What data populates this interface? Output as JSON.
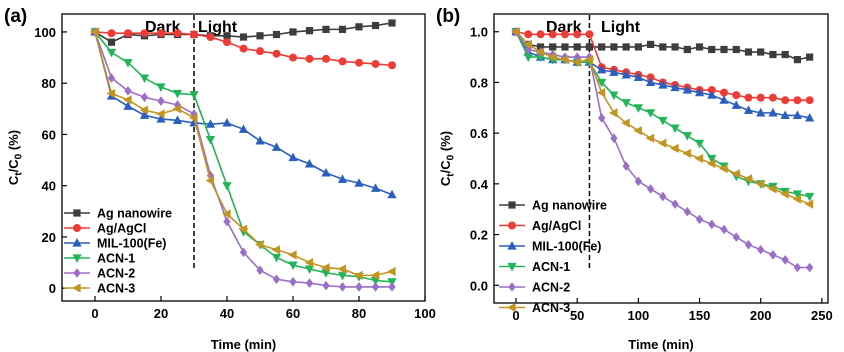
{
  "chart_data": [
    {
      "panel_label": "(a)",
      "type": "line",
      "phases": {
        "dark": "Dark",
        "light": "Light",
        "divider_x": 30
      },
      "xlabel": "Time (min)",
      "ylabel_parts": {
        "main": "C",
        "sub1": "t",
        "sep": "/C",
        "sub2": "0",
        "unit": " (%)"
      },
      "xlim": [
        -10,
        100
      ],
      "ylim": [
        -5,
        107
      ],
      "x_ticks": [
        0,
        20,
        40,
        60,
        80,
        100
      ],
      "y_ticks": [
        0,
        20,
        40,
        60,
        80,
        100
      ],
      "x_tick_labels": [
        "0",
        "20",
        "40",
        "60",
        "80",
        "100"
      ],
      "y_tick_labels": [
        "0",
        "20",
        "40",
        "60",
        "80",
        "100"
      ],
      "legend_position": "bottom-left",
      "series": [
        {
          "name": "Ag nanowire",
          "color": "#3d3d3d",
          "marker": "square",
          "x": [
            0,
            5,
            10,
            15,
            20,
            25,
            30,
            35,
            40,
            45,
            50,
            55,
            60,
            65,
            70,
            75,
            80,
            85,
            90
          ],
          "y": [
            100,
            96,
            99,
            98.5,
            99,
            99,
            99,
            98.5,
            98.5,
            98,
            98.5,
            99,
            100,
            100.5,
            101,
            101,
            102,
            102.5,
            103.5
          ]
        },
        {
          "name": "Ag/AgCl",
          "color": "#ef3b36",
          "marker": "circle",
          "x": [
            0,
            5,
            10,
            15,
            20,
            25,
            30,
            35,
            40,
            45,
            50,
            55,
            60,
            65,
            70,
            75,
            80,
            85,
            90
          ],
          "y": [
            100,
            99.5,
            99.5,
            99.5,
            99.5,
            99.5,
            99,
            98,
            96,
            93.5,
            92.5,
            91.5,
            90,
            89.5,
            89.5,
            88.5,
            88,
            87.5,
            87
          ]
        },
        {
          "name": "MIL-100(Fe)",
          "color": "#2a5fbf",
          "marker": "triangle-up",
          "x": [
            0,
            5,
            10,
            15,
            20,
            25,
            30,
            35,
            40,
            45,
            50,
            55,
            60,
            65,
            70,
            75,
            80,
            85,
            90
          ],
          "y": [
            100,
            75,
            71,
            67.5,
            66,
            65.5,
            64.5,
            64,
            64.5,
            62,
            57.5,
            55,
            51,
            48.5,
            45,
            42.5,
            41,
            39,
            36.5
          ]
        },
        {
          "name": "ACN-1",
          "color": "#23b45a",
          "marker": "triangle-down",
          "x": [
            0,
            5,
            10,
            15,
            20,
            25,
            30,
            35,
            40,
            45,
            50,
            55,
            60,
            65,
            70,
            75,
            80,
            85,
            90
          ],
          "y": [
            100,
            92,
            88,
            82,
            78.5,
            76,
            75.5,
            58,
            40,
            22,
            17,
            12,
            9,
            7.5,
            6,
            5,
            4.5,
            3,
            2.5
          ]
        },
        {
          "name": "ACN-2",
          "color": "#9b6fc7",
          "marker": "diamond",
          "x": [
            0,
            5,
            10,
            15,
            20,
            25,
            30,
            35,
            40,
            45,
            50,
            55,
            60,
            65,
            70,
            75,
            80,
            85,
            90
          ],
          "y": [
            100,
            82,
            77,
            74.5,
            73,
            71.5,
            68,
            44,
            26,
            14,
            7,
            3.5,
            2.5,
            2,
            1,
            0.5,
            0.5,
            0.5,
            0.5
          ]
        },
        {
          "name": "ACN-3",
          "color": "#c29523",
          "marker": "left-triangle",
          "x": [
            0,
            5,
            10,
            15,
            20,
            25,
            30,
            35,
            40,
            45,
            50,
            55,
            60,
            65,
            70,
            75,
            80,
            85,
            90
          ],
          "y": [
            100,
            76,
            73.5,
            69.5,
            68,
            70,
            66.5,
            42,
            29,
            23,
            17,
            15,
            13,
            10,
            8,
            7.5,
            5,
            5,
            6.5
          ]
        }
      ]
    },
    {
      "panel_label": "(b)",
      "type": "line",
      "phases": {
        "dark": "Dark",
        "light": "Light",
        "divider_x": 60
      },
      "xlabel": "Time (min)",
      "ylabel_parts": {
        "main": "C",
        "sub1": "t",
        "sep": "/C",
        "sub2": "0",
        "unit": " (%)"
      },
      "xlim": [
        -18,
        255
      ],
      "ylim": [
        -0.07,
        1.07
      ],
      "x_ticks": [
        0,
        50,
        100,
        150,
        200,
        250
      ],
      "y_ticks": [
        0,
        0.2,
        0.4,
        0.6,
        0.8,
        1.0
      ],
      "x_tick_labels": [
        "0",
        "50",
        "100",
        "150",
        "200",
        "250"
      ],
      "y_tick_labels": [
        "0.0",
        "0.2",
        "0.4",
        "0.6",
        "0.8",
        "1.0"
      ],
      "legend_position": "bottom-left",
      "series": [
        {
          "name": "Ag nanowire",
          "color": "#3d3d3d",
          "marker": "square",
          "x": [
            0,
            10,
            20,
            30,
            40,
            50,
            60,
            70,
            80,
            90,
            100,
            110,
            120,
            130,
            140,
            150,
            160,
            170,
            180,
            190,
            200,
            210,
            220,
            230,
            240
          ],
          "y": [
            1.0,
            0.95,
            0.94,
            0.94,
            0.94,
            0.94,
            0.94,
            0.94,
            0.94,
            0.94,
            0.94,
            0.95,
            0.94,
            0.94,
            0.93,
            0.94,
            0.93,
            0.93,
            0.93,
            0.92,
            0.92,
            0.91,
            0.91,
            0.89,
            0.9
          ]
        },
        {
          "name": "Ag/AgCl",
          "color": "#ef3b36",
          "marker": "circle",
          "x": [
            0,
            10,
            20,
            30,
            40,
            50,
            60,
            70,
            80,
            90,
            100,
            110,
            120,
            130,
            140,
            150,
            160,
            170,
            180,
            190,
            200,
            210,
            220,
            230,
            240
          ],
          "y": [
            1.0,
            0.99,
            0.99,
            0.99,
            0.99,
            0.99,
            0.99,
            0.86,
            0.85,
            0.84,
            0.83,
            0.82,
            0.8,
            0.79,
            0.78,
            0.77,
            0.77,
            0.76,
            0.75,
            0.74,
            0.74,
            0.74,
            0.73,
            0.73,
            0.73
          ]
        },
        {
          "name": "MIL-100(Fe)",
          "color": "#2a5fbf",
          "marker": "triangle-up",
          "x": [
            0,
            10,
            20,
            30,
            40,
            50,
            60,
            70,
            80,
            90,
            100,
            110,
            120,
            130,
            140,
            150,
            160,
            170,
            180,
            190,
            200,
            210,
            220,
            230,
            240
          ],
          "y": [
            1.0,
            0.92,
            0.9,
            0.89,
            0.89,
            0.88,
            0.88,
            0.85,
            0.84,
            0.83,
            0.82,
            0.8,
            0.79,
            0.78,
            0.77,
            0.76,
            0.75,
            0.73,
            0.71,
            0.69,
            0.68,
            0.68,
            0.67,
            0.67,
            0.66
          ]
        },
        {
          "name": "ACN-1",
          "color": "#23b45a",
          "marker": "triangle-down",
          "x": [
            0,
            10,
            20,
            30,
            40,
            50,
            60,
            70,
            80,
            90,
            100,
            110,
            120,
            130,
            140,
            150,
            160,
            170,
            180,
            190,
            200,
            210,
            220,
            230,
            240
          ],
          "y": [
            1.0,
            0.9,
            0.9,
            0.89,
            0.89,
            0.88,
            0.88,
            0.8,
            0.75,
            0.72,
            0.7,
            0.68,
            0.65,
            0.62,
            0.59,
            0.56,
            0.5,
            0.47,
            0.43,
            0.41,
            0.4,
            0.39,
            0.37,
            0.36,
            0.35
          ]
        },
        {
          "name": "ACN-2",
          "color": "#9b6fc7",
          "marker": "diamond",
          "x": [
            0,
            10,
            20,
            30,
            40,
            50,
            60,
            70,
            80,
            90,
            100,
            110,
            120,
            130,
            140,
            150,
            160,
            170,
            180,
            190,
            200,
            210,
            220,
            230,
            240
          ],
          "y": [
            1.0,
            0.93,
            0.92,
            0.91,
            0.9,
            0.9,
            0.9,
            0.66,
            0.58,
            0.47,
            0.41,
            0.38,
            0.35,
            0.32,
            0.29,
            0.26,
            0.24,
            0.22,
            0.19,
            0.16,
            0.14,
            0.12,
            0.1,
            0.07,
            0.07
          ]
        },
        {
          "name": "ACN-3",
          "color": "#c29523",
          "marker": "left-triangle",
          "x": [
            0,
            10,
            20,
            30,
            40,
            50,
            60,
            70,
            80,
            90,
            100,
            110,
            120,
            130,
            140,
            150,
            160,
            170,
            180,
            190,
            200,
            210,
            220,
            230,
            240
          ],
          "y": [
            1.0,
            0.95,
            0.92,
            0.9,
            0.89,
            0.88,
            0.89,
            0.76,
            0.68,
            0.64,
            0.61,
            0.58,
            0.56,
            0.54,
            0.52,
            0.5,
            0.48,
            0.46,
            0.44,
            0.42,
            0.4,
            0.38,
            0.36,
            0.34,
            0.32
          ]
        }
      ]
    }
  ]
}
